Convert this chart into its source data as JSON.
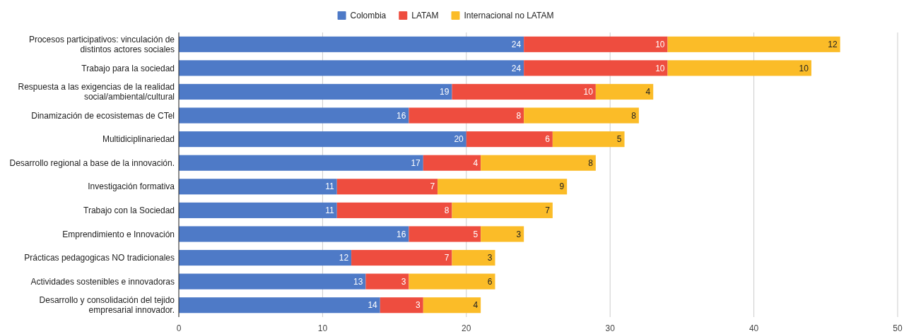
{
  "chart_data": {
    "type": "bar",
    "orientation": "horizontal",
    "stacked": true,
    "data_labels": true,
    "grid": "x",
    "legend": "top",
    "categories": [
      "Procesos participativos: vinculación de distintos actores sociales",
      "Trabajo para la sociedad",
      "Respuesta a las exigencias de la realidad social/ambiental/cultural",
      "Dinamización de ecosistemas de CTel",
      "Multidiciplinariedad",
      "Desarrollo regional a base de la innovación.",
      "Investigación formativa",
      "Trabajo con la Sociedad",
      "Emprendimiento e Innovación",
      "Prácticas pedagogicas NO tradicionales",
      "Actividades sostenibles e innovadoras",
      "Desarrollo y consolidación del tejido empresarial innovador."
    ],
    "series": [
      {
        "name": "Colombia",
        "color": "#4e7ac7",
        "values": [
          24,
          24,
          19,
          16,
          20,
          17,
          11,
          11,
          16,
          12,
          13,
          14
        ]
      },
      {
        "name": "LATAM",
        "color": "#ee4d3f",
        "values": [
          10,
          10,
          10,
          8,
          6,
          4,
          7,
          8,
          5,
          7,
          3,
          3
        ]
      },
      {
        "name": "Internacional no LATAM",
        "color": "#fbbc28",
        "values": [
          12,
          10,
          4,
          8,
          5,
          8,
          9,
          7,
          3,
          3,
          6,
          4
        ]
      }
    ],
    "xlim": [
      0,
      50
    ],
    "xticks": [
      0,
      10,
      20,
      30,
      40,
      50
    ]
  }
}
